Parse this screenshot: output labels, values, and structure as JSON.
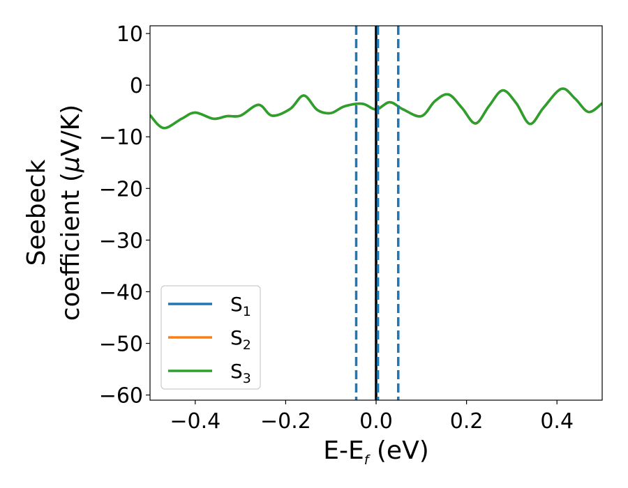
{
  "chart_data": {
    "type": "line",
    "xlabel": {
      "main": "E-E",
      "sub": "f",
      "unit": " (eV)"
    },
    "ylabel": {
      "line1": "Seebeck",
      "line2": "coefficient  (",
      "mu": "μ",
      "line2_end": "V/K)"
    },
    "xlim": [
      -0.5,
      0.5
    ],
    "ylim": [
      -61,
      11.5
    ],
    "x_ticks": [
      -0.4,
      -0.2,
      0.0,
      0.2,
      0.4
    ],
    "x_tick_labels": [
      "−0.4",
      "−0.2",
      "0.0",
      "0.2",
      "0.4"
    ],
    "y_ticks": [
      10,
      0,
      -10,
      -20,
      -30,
      -40,
      -50,
      -60
    ],
    "y_tick_labels": [
      "10",
      "0",
      "−10",
      "−20",
      "−30",
      "−40",
      "−50",
      "−60"
    ],
    "grid": false,
    "legend": {
      "placement": "lower-left",
      "entries": [
        {
          "label": "S",
          "sub": "1",
          "color": "#1f77b4"
        },
        {
          "label": "S",
          "sub": "2",
          "color": "#ff7f0e"
        },
        {
          "label": "S",
          "sub": "3",
          "color": "#2ca02c"
        }
      ]
    },
    "series": [
      {
        "name": "S1",
        "color": "#1f77b4",
        "x": [
          -0.5,
          -0.47,
          -0.43,
          -0.4,
          -0.36,
          -0.33,
          -0.3,
          -0.26,
          -0.23,
          -0.19,
          -0.16,
          -0.13,
          -0.1,
          -0.07,
          -0.03,
          0.0,
          0.03,
          0.06,
          0.1,
          0.13,
          0.16,
          0.19,
          0.22,
          0.25,
          0.28,
          0.31,
          0.34,
          0.37,
          0.41,
          0.44,
          0.47,
          0.5
        ],
        "values": [
          -5.8,
          -8.3,
          -6.5,
          -5.3,
          -6.5,
          -6.0,
          -5.9,
          -3.8,
          -5.9,
          -4.6,
          -2.0,
          -4.8,
          -5.4,
          -4.1,
          -3.6,
          -4.7,
          -3.3,
          -4.7,
          -6.0,
          -3.1,
          -1.8,
          -4.4,
          -7.4,
          -4.0,
          -1.0,
          -3.5,
          -7.5,
          -4.4,
          -0.7,
          -2.6,
          -5.2,
          -3.5
        ]
      },
      {
        "name": "S2",
        "color": "#ff7f0e",
        "x": [
          -0.5,
          -0.47,
          -0.43,
          -0.4,
          -0.36,
          -0.33,
          -0.3,
          -0.26,
          -0.23,
          -0.19,
          -0.16,
          -0.13,
          -0.1,
          -0.07,
          -0.03,
          0.0,
          0.03,
          0.06,
          0.1,
          0.13,
          0.16,
          0.19,
          0.22,
          0.25,
          0.28,
          0.31,
          0.34,
          0.37,
          0.41,
          0.44,
          0.47,
          0.5
        ],
        "values": [
          -5.8,
          -8.3,
          -6.5,
          -5.3,
          -6.5,
          -6.0,
          -5.9,
          -3.8,
          -5.9,
          -4.6,
          -2.0,
          -4.8,
          -5.4,
          -4.1,
          -3.6,
          -4.7,
          -3.3,
          -4.7,
          -6.0,
          -3.1,
          -1.8,
          -4.4,
          -7.4,
          -4.0,
          -1.0,
          -3.5,
          -7.5,
          -4.4,
          -0.7,
          -2.6,
          -5.2,
          -3.5
        ]
      },
      {
        "name": "S3",
        "color": "#2ca02c",
        "x": [
          -0.5,
          -0.47,
          -0.43,
          -0.4,
          -0.36,
          -0.33,
          -0.3,
          -0.26,
          -0.23,
          -0.19,
          -0.16,
          -0.13,
          -0.1,
          -0.07,
          -0.03,
          0.0,
          0.03,
          0.06,
          0.1,
          0.13,
          0.16,
          0.19,
          0.22,
          0.25,
          0.28,
          0.31,
          0.34,
          0.37,
          0.41,
          0.44,
          0.47,
          0.5
        ],
        "values": [
          -5.8,
          -8.3,
          -6.5,
          -5.3,
          -6.5,
          -6.0,
          -5.9,
          -3.8,
          -5.9,
          -4.6,
          -2.0,
          -4.8,
          -5.4,
          -4.1,
          -3.6,
          -4.7,
          -3.3,
          -4.7,
          -6.0,
          -3.1,
          -1.8,
          -4.4,
          -7.4,
          -4.0,
          -1.0,
          -3.5,
          -7.5,
          -4.4,
          -0.7,
          -2.6,
          -5.2,
          -3.5
        ]
      }
    ],
    "vertical_lines": [
      {
        "x": 0.0,
        "style": "solid",
        "color": "#000000"
      },
      {
        "x": -0.044,
        "style": "dashed",
        "color": "#1f77b4"
      },
      {
        "x": 0.004,
        "style": "dashed",
        "color": "#1f77b4"
      },
      {
        "x": 0.049,
        "style": "dashed",
        "color": "#1f77b4"
      }
    ]
  }
}
